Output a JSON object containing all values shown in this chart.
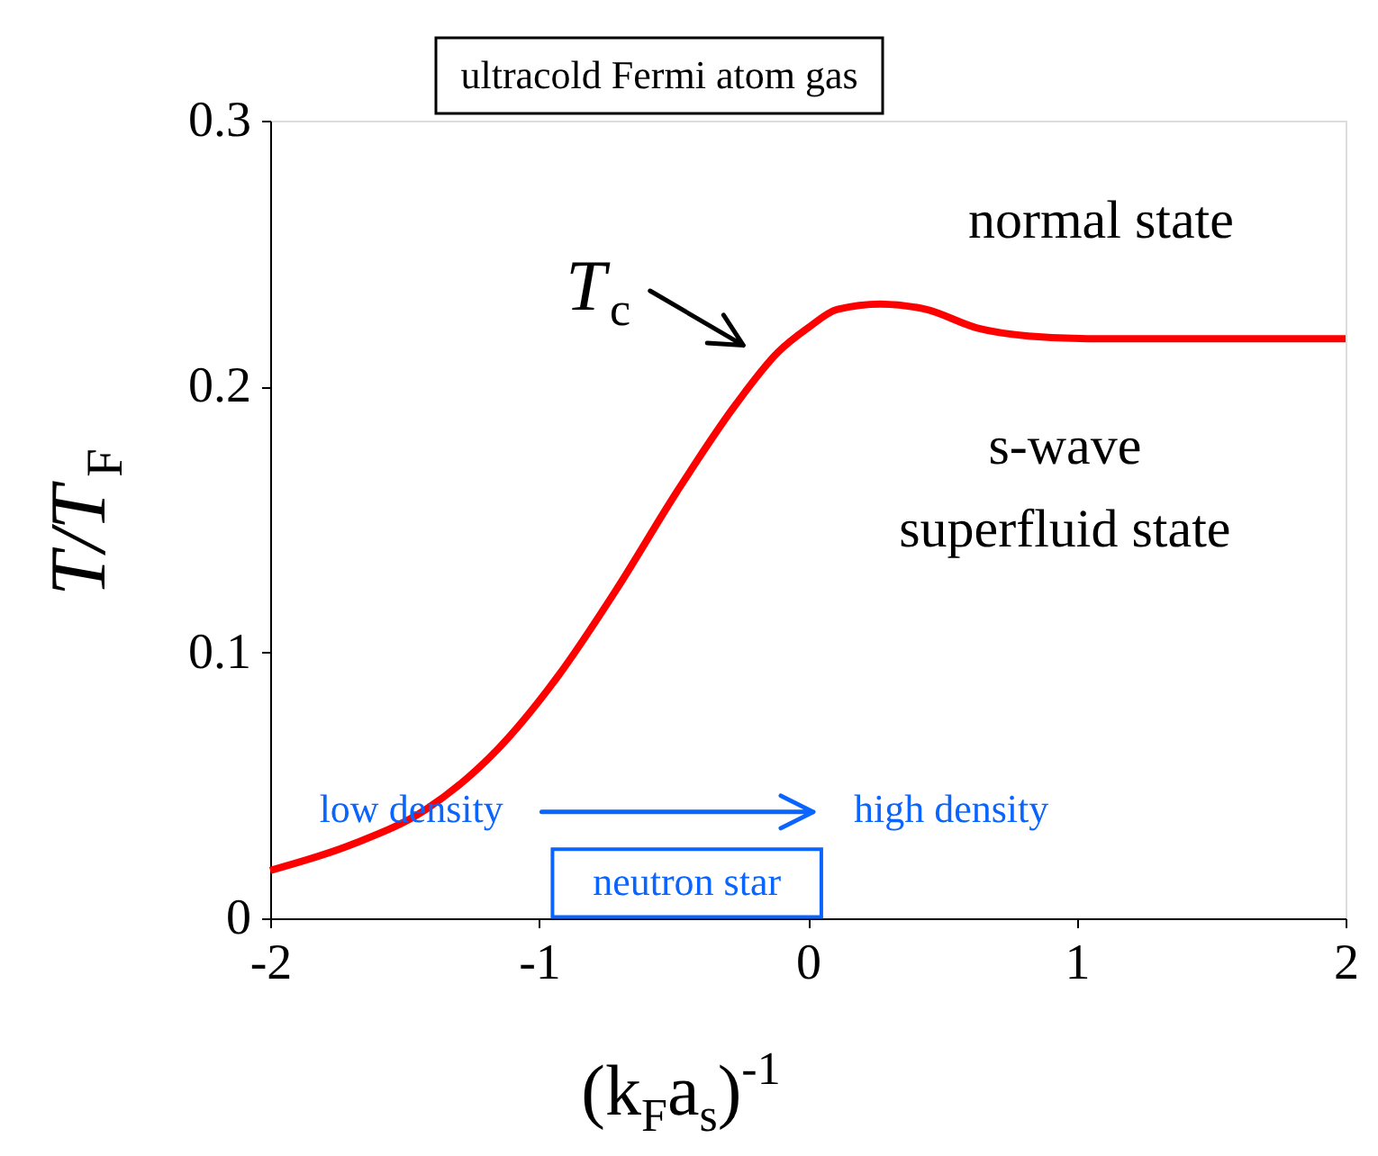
{
  "chart_data": {
    "type": "line",
    "title": "ultracold Fermi atom gas",
    "xlabel": "(k$_{F}$a$_{s}$)$^{-1}$",
    "ylabel": "T/T$_{F}$",
    "x": [
      -2,
      -1.69,
      -1.42,
      -1.15,
      -0.93,
      -0.71,
      -0.49,
      -0.27,
      -0.11,
      0.0,
      0.11,
      0.27,
      0.44,
      0.63,
      0.82,
      1.04,
      1.5,
      2
    ],
    "series": [
      {
        "color": "#ff0000",
        "values": [
          0.018,
          0.028,
          0.041,
          0.064,
          0.091,
          0.124,
          0.16,
          0.193,
          0.213,
          0.222,
          0.229,
          0.231,
          0.229,
          0.222,
          0.219,
          0.218,
          0.218,
          0.218
        ]
      }
    ],
    "xlim": [
      -2,
      2
    ],
    "ylim": [
      0,
      0.3
    ],
    "xticks": [
      -2,
      -1,
      0,
      1,
      2
    ],
    "yticks": [
      0,
      0.1,
      0.2,
      0.3
    ],
    "grid": false,
    "marker": "none",
    "line_style": "solid",
    "annotations": [
      "T$_{c}$",
      "normal state",
      "s-wave",
      "superfluid state",
      "low density",
      "high density",
      "neutron star"
    ]
  }
}
